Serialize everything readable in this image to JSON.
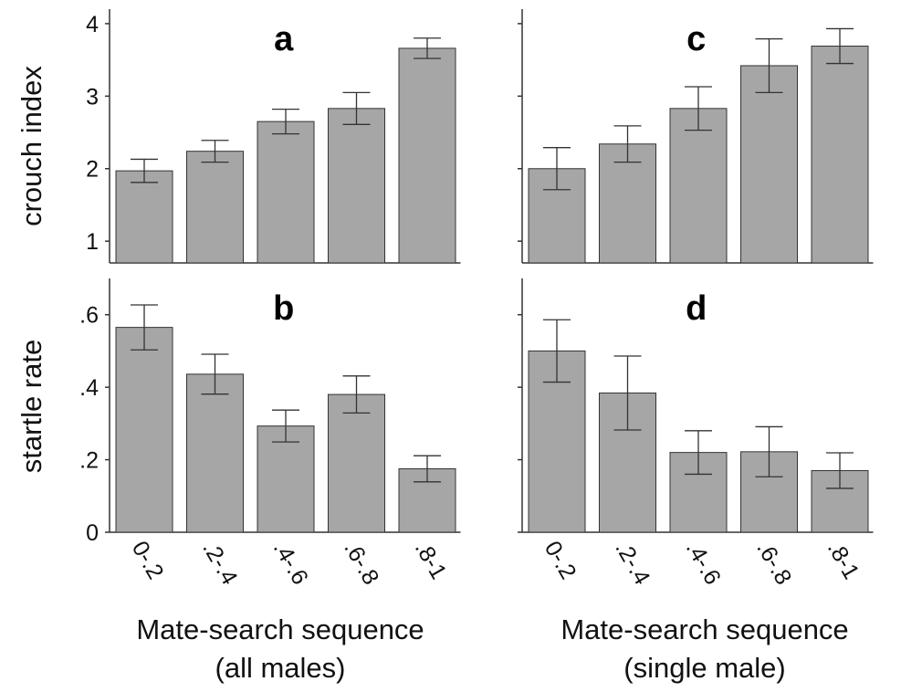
{
  "colors": {
    "bar_fill": "#a6a6a6",
    "bar_stroke": "#333333",
    "axis": "#333333"
  },
  "ylabels": {
    "top": "crouch index",
    "bottom": "startle rate"
  },
  "xlabels": {
    "left": {
      "line1": "Mate-search sequence",
      "line2": "(all males)"
    },
    "right": {
      "line1": "Mate-search sequence",
      "line2": "(single male)"
    }
  },
  "chart_data": [
    {
      "panel": "a",
      "type": "bar",
      "categories": [
        "0-.2",
        ".2-.4",
        ".4-.6",
        ".6-.8",
        ".8-1"
      ],
      "values": [
        1.97,
        2.24,
        2.65,
        2.83,
        3.66
      ],
      "error": [
        0.16,
        0.15,
        0.17,
        0.22,
        0.14
      ],
      "ylim": [
        0.7,
        4.2
      ],
      "yticks": [
        1,
        2,
        3,
        4
      ],
      "ytick_labels": [
        "1",
        "2",
        "3",
        "4"
      ],
      "ylabel": "crouch index"
    },
    {
      "panel": "c",
      "type": "bar",
      "categories": [
        "0-.2",
        ".2-.4",
        ".4-.6",
        ".6-.8",
        ".8-1"
      ],
      "values": [
        2.0,
        2.34,
        2.83,
        3.42,
        3.69
      ],
      "error": [
        0.29,
        0.25,
        0.3,
        0.37,
        0.24
      ],
      "ylim": [
        0.7,
        4.2
      ],
      "yticks": [
        1,
        2,
        3,
        4
      ],
      "ytick_labels": [],
      "ylabel": "crouch index"
    },
    {
      "panel": "b",
      "type": "bar",
      "categories": [
        "0-.2",
        ".2-.4",
        ".4-.6",
        ".6-.8",
        ".8-1"
      ],
      "values": [
        0.565,
        0.436,
        0.293,
        0.38,
        0.175
      ],
      "error": [
        0.062,
        0.055,
        0.044,
        0.051,
        0.036
      ],
      "ylim": [
        0,
        0.7
      ],
      "yticks": [
        0,
        0.2,
        0.4,
        0.6
      ],
      "ytick_labels": [
        "0",
        ".2",
        ".4",
        ".6"
      ],
      "ylabel": "startle rate",
      "xlabel": "Mate-search sequence (all males)"
    },
    {
      "panel": "d",
      "type": "bar",
      "categories": [
        "0-.2",
        ".2-.4",
        ".4-.6",
        ".6-.8",
        ".8-1"
      ],
      "values": [
        0.5,
        0.384,
        0.22,
        0.222,
        0.17
      ],
      "error": [
        0.086,
        0.102,
        0.06,
        0.069,
        0.049
      ],
      "ylim": [
        0,
        0.7
      ],
      "yticks": [
        0,
        0.2,
        0.4,
        0.6
      ],
      "ytick_labels": [],
      "ylabel": "startle rate",
      "xlabel": "Mate-search sequence (single male)"
    }
  ]
}
